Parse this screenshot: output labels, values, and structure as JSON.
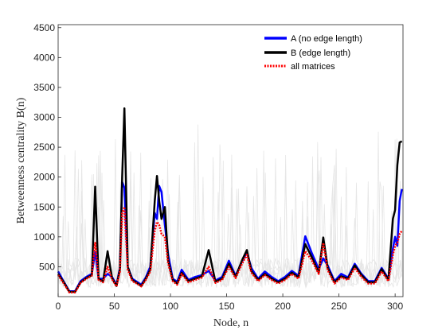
{
  "chart_data": {
    "type": "line",
    "xlabel": "Node, n",
    "ylabel": "Betweenness centrality B(n)",
    "xlim": [
      0,
      307
    ],
    "ylim": [
      0,
      4550
    ],
    "xticks": [
      0,
      50,
      100,
      150,
      200,
      250,
      300
    ],
    "yticks": [
      500,
      1000,
      1500,
      2000,
      2500,
      3000,
      3500,
      4000,
      4500
    ],
    "grid": false,
    "legend_position": "top-right",
    "colors": {
      "background_matrices": "#e6e6e6",
      "A": "#0000ff",
      "B": "#000000",
      "all": "#ff0000"
    },
    "series": [
      {
        "name": "A (no edge length)",
        "key": "A",
        "style": "solid",
        "x": [
          0,
          5,
          10,
          15,
          20,
          25,
          30,
          33,
          36,
          40,
          44,
          48,
          52,
          55,
          57,
          59,
          62,
          66,
          70,
          74,
          78,
          82,
          86,
          88,
          90,
          92,
          95,
          98,
          102,
          106,
          110,
          116,
          122,
          128,
          134,
          140,
          146,
          152,
          158,
          164,
          168,
          172,
          178,
          184,
          190,
          196,
          202,
          208,
          214,
          220,
          226,
          232,
          236,
          240,
          246,
          252,
          258,
          264,
          270,
          276,
          282,
          288,
          294,
          298,
          300,
          302,
          304,
          306
        ],
        "y": [
          420,
          250,
          90,
          90,
          260,
          330,
          380,
          750,
          300,
          300,
          380,
          330,
          200,
          480,
          1920,
          1820,
          500,
          300,
          250,
          200,
          320,
          500,
          1400,
          1300,
          1850,
          1750,
          1200,
          700,
          300,
          250,
          450,
          280,
          330,
          360,
          430,
          270,
          330,
          600,
          350,
          600,
          740,
          480,
          300,
          420,
          330,
          260,
          330,
          430,
          350,
          1010,
          720,
          460,
          640,
          520,
          260,
          380,
          320,
          550,
          380,
          260,
          260,
          480,
          300,
          800,
          1000,
          850,
          1600,
          1800
        ]
      },
      {
        "name": "B (edge length)",
        "key": "B",
        "style": "solid",
        "x": [
          0,
          5,
          10,
          15,
          20,
          25,
          30,
          33,
          36,
          40,
          44,
          48,
          52,
          55,
          57,
          59,
          62,
          66,
          70,
          74,
          78,
          82,
          86,
          88,
          90,
          92,
          95,
          98,
          102,
          106,
          110,
          116,
          122,
          128,
          134,
          140,
          146,
          152,
          158,
          164,
          168,
          172,
          178,
          184,
          190,
          196,
          202,
          208,
          214,
          220,
          226,
          232,
          236,
          240,
          246,
          252,
          258,
          264,
          270,
          276,
          282,
          288,
          294,
          298,
          300,
          302,
          304,
          306
        ],
        "y": [
          380,
          240,
          80,
          80,
          240,
          310,
          360,
          1840,
          300,
          250,
          760,
          310,
          180,
          460,
          2000,
          3150,
          500,
          280,
          230,
          180,
          300,
          450,
          1600,
          2020,
          1600,
          1300,
          1500,
          600,
          280,
          220,
          400,
          260,
          300,
          340,
          780,
          250,
          300,
          550,
          330,
          620,
          780,
          430,
          280,
          380,
          300,
          240,
          300,
          400,
          320,
          880,
          650,
          400,
          990,
          480,
          240,
          340,
          300,
          520,
          360,
          240,
          240,
          460,
          280,
          1300,
          1450,
          2200,
          2580,
          2600
        ]
      },
      {
        "name": "all matrices",
        "key": "all",
        "style": "dotted",
        "x": [
          0,
          5,
          10,
          15,
          20,
          25,
          30,
          33,
          36,
          40,
          44,
          48,
          52,
          55,
          57,
          59,
          62,
          66,
          70,
          74,
          78,
          82,
          86,
          88,
          90,
          92,
          95,
          98,
          102,
          106,
          110,
          116,
          122,
          128,
          134,
          140,
          146,
          152,
          158,
          164,
          168,
          172,
          178,
          184,
          190,
          196,
          202,
          208,
          214,
          220,
          226,
          232,
          236,
          240,
          246,
          252,
          258,
          264,
          270,
          276,
          282,
          288,
          294,
          298,
          300,
          302,
          304,
          306
        ],
        "y": [
          360,
          220,
          70,
          70,
          230,
          300,
          350,
          900,
          280,
          240,
          500,
          290,
          170,
          420,
          1400,
          1500,
          450,
          260,
          220,
          170,
          280,
          420,
          1100,
          1250,
          1200,
          1050,
          1000,
          550,
          260,
          200,
          380,
          240,
          280,
          320,
          500,
          230,
          280,
          500,
          310,
          560,
          700,
          400,
          260,
          360,
          280,
          220,
          280,
          380,
          300,
          760,
          600,
          380,
          900,
          440,
          220,
          320,
          280,
          480,
          330,
          220,
          220,
          420,
          260,
          700,
          850,
          900,
          1050,
          1100
        ]
      }
    ]
  }
}
